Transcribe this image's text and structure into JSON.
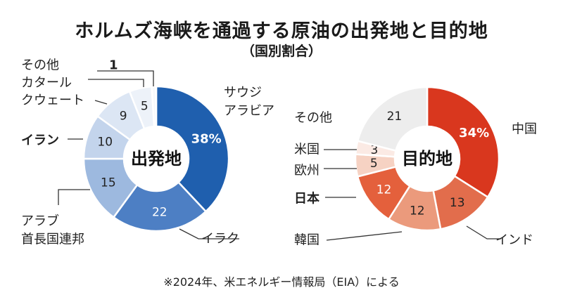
{
  "title": "ホルムズ海峡を通過する原油の出発地と目的地",
  "subtitle": "（国別割合）",
  "source": "※2024年、米エネルギー情報局（EIA）による",
  "chart_data": [
    {
      "type": "pie",
      "style": "donut",
      "center_label": "出発地",
      "unit": "%",
      "slices": [
        {
          "label": "サウジ\nアラビア",
          "value": 38,
          "value_text": "38%",
          "color": "#1f5fae",
          "bold": false
        },
        {
          "label": "イラク",
          "value": 22,
          "value_text": "22",
          "color": "#4d7fc4",
          "bold": false
        },
        {
          "label": "アラブ\n首長国連邦",
          "value": 15,
          "value_text": "15",
          "color": "#9db9df",
          "bold": false
        },
        {
          "label": "イラン",
          "value": 10,
          "value_text": "10",
          "color": "#c3d4ec",
          "bold": true
        },
        {
          "label": "クウェート",
          "value": 9,
          "value_text": "9",
          "color": "#dce6f4",
          "bold": false
        },
        {
          "label": "カタール",
          "value": 5,
          "value_text": "5",
          "color": "#edf2f9",
          "bold": false
        },
        {
          "label": "その他",
          "value": 1,
          "value_text": "1",
          "color": "#f7f9fc",
          "bold": false
        }
      ]
    },
    {
      "type": "pie",
      "style": "donut",
      "center_label": "目的地",
      "unit": "%",
      "slices": [
        {
          "label": "中国",
          "value": 34,
          "value_text": "34%",
          "color": "#d9371e",
          "bold": false
        },
        {
          "label": "インド",
          "value": 13,
          "value_text": "13",
          "color": "#e26d4c",
          "bold": false
        },
        {
          "label": "韓国",
          "value": 12,
          "value_text": "12",
          "color": "#eb9a7c",
          "bold": false
        },
        {
          "label": "日本",
          "value": 12,
          "value_text": "12",
          "color": "#e4603c",
          "bold": true
        },
        {
          "label": "欧州",
          "value": 5,
          "value_text": "5",
          "color": "#f6d2c3",
          "bold": false
        },
        {
          "label": "米国",
          "value": 3,
          "value_text": "3",
          "color": "#fbeae4",
          "bold": false
        },
        {
          "label": "その他",
          "value": 21,
          "value_text": "21",
          "color": "#ededed",
          "bold": false
        }
      ]
    }
  ]
}
